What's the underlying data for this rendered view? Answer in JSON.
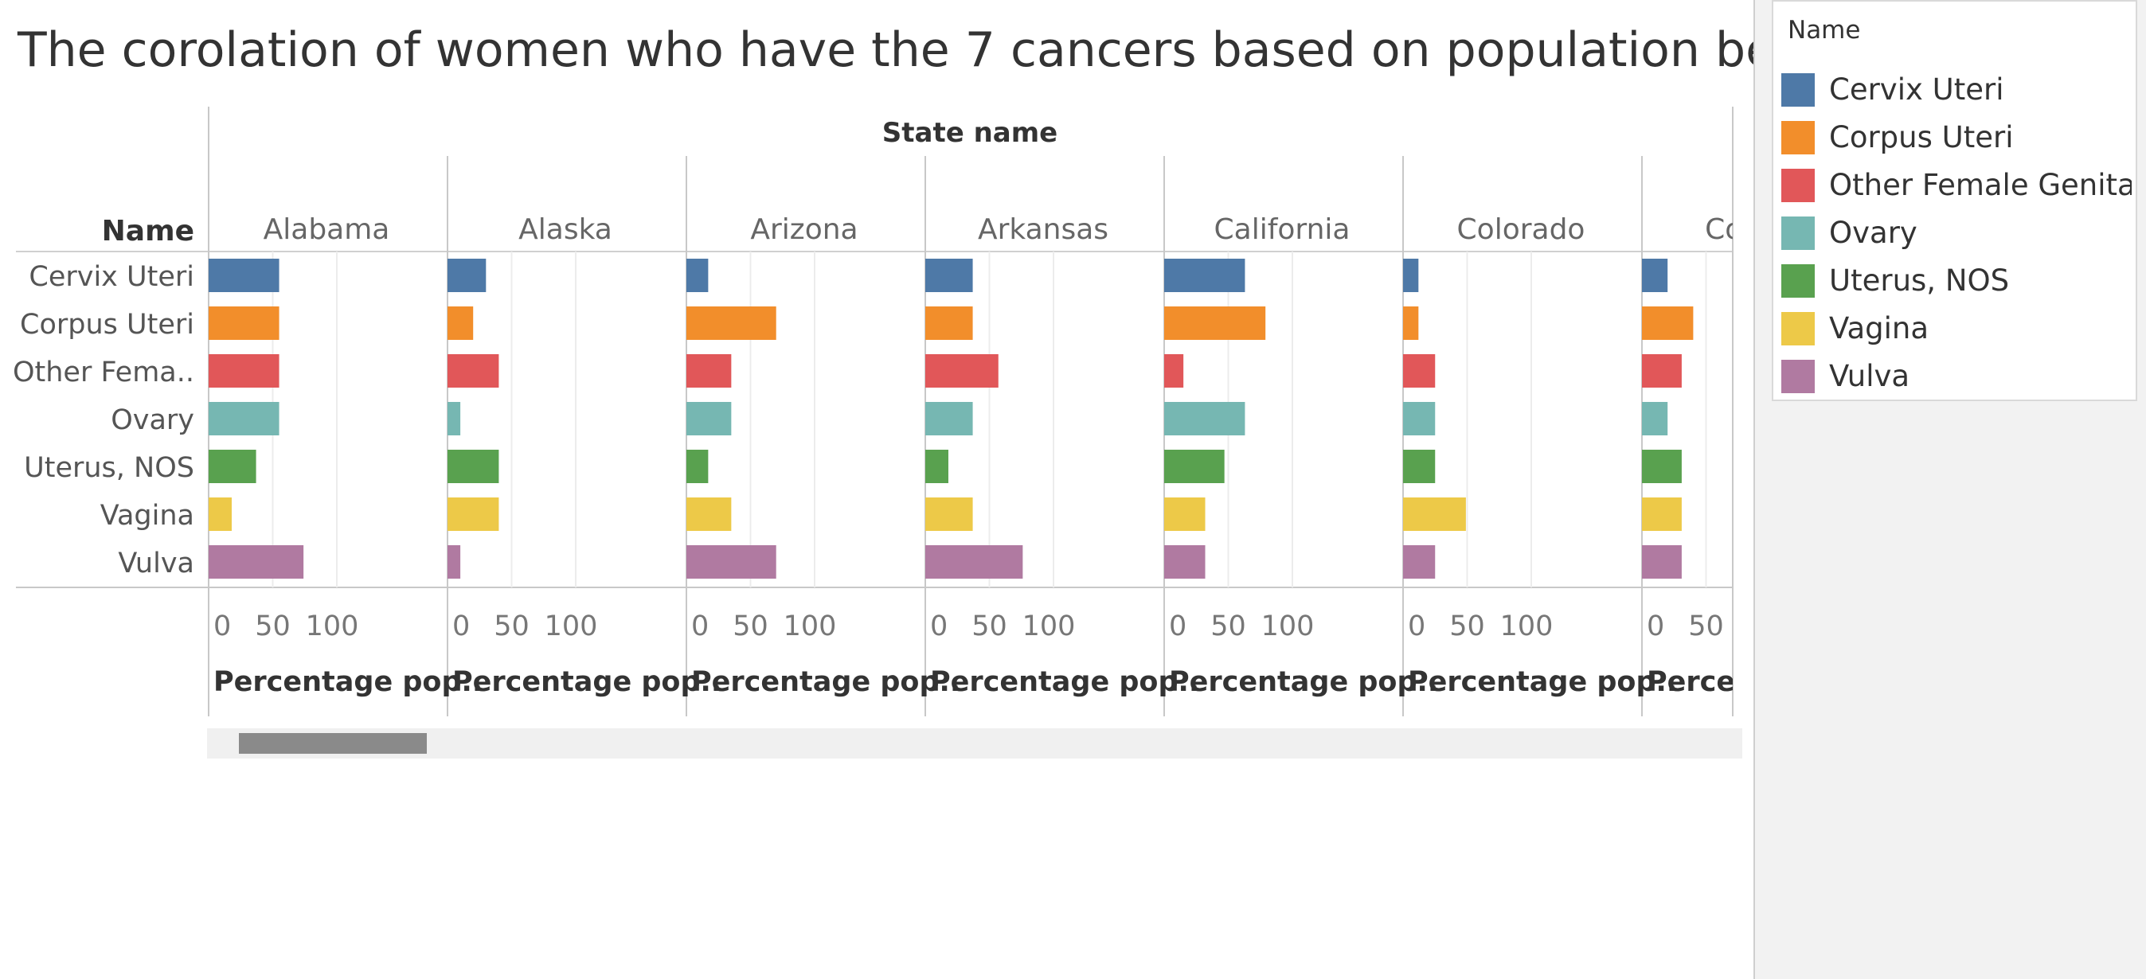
{
  "title": "The corolation of women who have the 7 cancers based on population below",
  "chart_data": {
    "type": "bar",
    "orientation": "horizontal",
    "column_header": "State name",
    "row_header": "Name",
    "row_labels_display": [
      "Cervix Uteri",
      "Corpus Uteri",
      "Other Fema..",
      "Ovary",
      "Uterus, NOS",
      "Vagina",
      "Vulva"
    ],
    "categories": [
      "Cervix Uteri",
      "Corpus Uteri",
      "Other Female Genita..",
      "Ovary",
      "Uterus, NOS",
      "Vagina",
      "Vulva"
    ],
    "colors": [
      "#4e79a7",
      "#f28e2b",
      "#e15759",
      "#76b7b2",
      "#59a14f",
      "#edc948",
      "#b07aa1"
    ],
    "xlim": [
      0,
      100
    ],
    "x_ticks": [
      "0",
      "50",
      "100"
    ],
    "grid": true,
    "panels": [
      {
        "name": "Alabama",
        "axis_label": "Percentage pop..",
        "values": [
          55,
          55,
          55,
          55,
          37,
          18,
          74
        ]
      },
      {
        "name": "Alaska",
        "axis_label": "Percentage pop..",
        "values": [
          30,
          20,
          40,
          10,
          40,
          40,
          10
        ]
      },
      {
        "name": "Arizona",
        "axis_label": "Percentage pop..",
        "values": [
          17,
          70,
          35,
          35,
          17,
          35,
          70
        ]
      },
      {
        "name": "Arkansas",
        "axis_label": "Percentage pop..",
        "values": [
          37,
          37,
          57,
          37,
          18,
          37,
          76
        ]
      },
      {
        "name": "California",
        "axis_label": "Percentage pop..",
        "values": [
          63,
          79,
          15,
          63,
          47,
          32,
          32
        ]
      },
      {
        "name": "Colorado",
        "axis_label": "Percentage pop..",
        "values": [
          12,
          12,
          25,
          25,
          25,
          49,
          25
        ]
      },
      {
        "name": "Conne..",
        "axis_label": "Perce..",
        "values": [
          20,
          40,
          31,
          20,
          31,
          31,
          31
        ]
      }
    ]
  },
  "legend": {
    "title": "Name",
    "items": [
      {
        "label": "Cervix Uteri",
        "color": "#4e79a7"
      },
      {
        "label": "Corpus Uteri",
        "color": "#f28e2b"
      },
      {
        "label": "Other Female Genita..",
        "color": "#e15759"
      },
      {
        "label": "Ovary",
        "color": "#76b7b2"
      },
      {
        "label": "Uterus, NOS",
        "color": "#59a14f"
      },
      {
        "label": "Vagina",
        "color": "#edc948"
      },
      {
        "label": "Vulva",
        "color": "#b07aa1"
      }
    ]
  }
}
